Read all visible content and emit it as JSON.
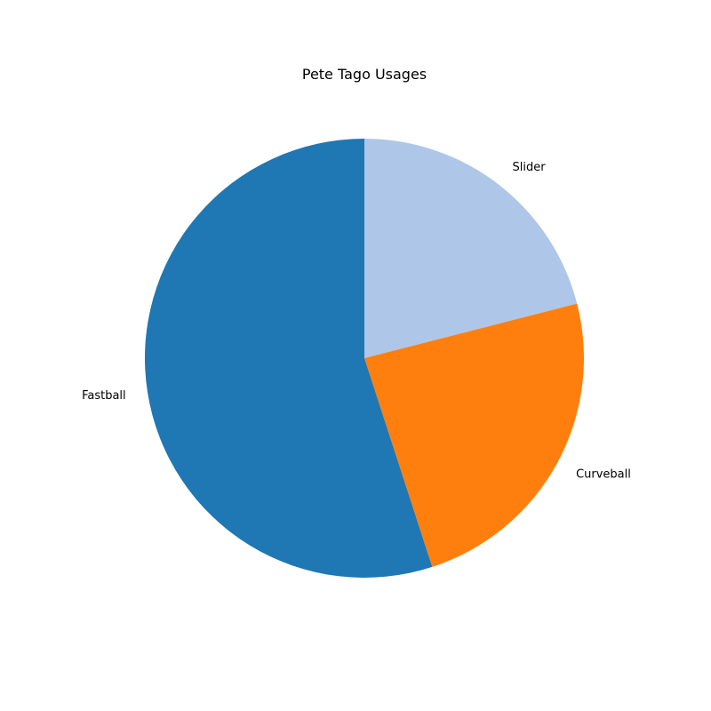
{
  "chart_data": {
    "type": "pie",
    "title": "Pete Tago Usages",
    "labels": [
      "Slider",
      "Curveball",
      "Fastball"
    ],
    "values": [
      21,
      24,
      55
    ],
    "colors": [
      "#aec7e8",
      "#ff7f0e",
      "#1f77b4"
    ],
    "start_angle_deg": 90,
    "direction": "clockwise",
    "legend": "none"
  }
}
